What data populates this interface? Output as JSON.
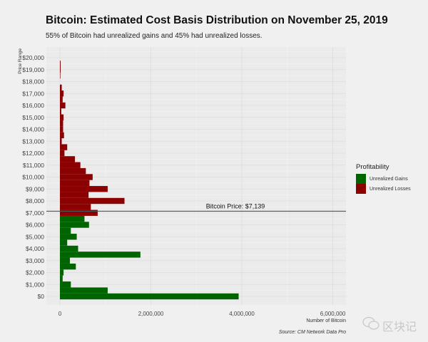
{
  "title": "Bitcoin: Estimated Cost Basis Distribution on November 25, 2019",
  "subtitle": "55% of Bitcoin had unrealized gains and 45% had unrealized losses.",
  "legend": {
    "title": "Profitability",
    "items": [
      {
        "label": "Unrealized Gains",
        "color": "#006400"
      },
      {
        "label": "Unrealized Losses",
        "color": "#8b0000"
      }
    ]
  },
  "source": "Source: CM Network Data Pro",
  "watermark": "区块记",
  "chart_data": {
    "type": "bar",
    "orientation": "horizontal",
    "title": "Bitcoin: Estimated Cost Basis Distribution on November 25, 2019",
    "xlabel": "Number of Bitcoin",
    "ylabel": "Price Range",
    "xlim": [
      0,
      6000000
    ],
    "ylim": [
      0,
      20000
    ],
    "grid": true,
    "legend_position": "right",
    "x_ticks": [
      0,
      2000000,
      4000000,
      6000000
    ],
    "x_tick_labels": [
      "0",
      "2,000,000",
      "4,000,000",
      "6,000,000"
    ],
    "y_ticks": [
      0,
      1000,
      2000,
      3000,
      4000,
      5000,
      6000,
      7000,
      8000,
      9000,
      10000,
      11000,
      12000,
      13000,
      14000,
      15000,
      16000,
      17000,
      18000,
      19000,
      20000
    ],
    "y_tick_labels": [
      "$0",
      "$1,000",
      "$2,000",
      "$3,000",
      "$4,000",
      "$5,000",
      "$6,000",
      "$7,000",
      "$8,000",
      "$9,000",
      "$10,000",
      "$11,000",
      "$12,000",
      "$13,000",
      "$14,000",
      "$15,000",
      "$16,000",
      "$17,000",
      "$18,000",
      "$19,000",
      "$20,000"
    ],
    "annotation": {
      "label": "Bitcoin Price: $7,139",
      "value": 7139
    },
    "categories": [
      0,
      500,
      1000,
      1500,
      2000,
      2500,
      3000,
      3500,
      4000,
      4500,
      5000,
      5500,
      6000,
      6500,
      7000,
      7500,
      8000,
      8500,
      9000,
      9500,
      10000,
      10500,
      11000,
      11500,
      12000,
      12500,
      13000,
      13500,
      14000,
      14500,
      15000,
      15500,
      16000,
      16500,
      17000,
      17500,
      18000,
      18500,
      19000,
      19500
    ],
    "values": [
      3930000,
      1050000,
      240000,
      60000,
      80000,
      350000,
      220000,
      1770000,
      400000,
      160000,
      370000,
      240000,
      640000,
      540000,
      830000,
      680000,
      1420000,
      630000,
      1050000,
      650000,
      720000,
      570000,
      450000,
      330000,
      100000,
      160000,
      40000,
      90000,
      70000,
      70000,
      80000,
      30000,
      120000,
      60000,
      80000,
      40000,
      0,
      10000,
      15000,
      15000
    ],
    "profitability": [
      "Unrealized Gains",
      "Unrealized Gains",
      "Unrealized Gains",
      "Unrealized Gains",
      "Unrealized Gains",
      "Unrealized Gains",
      "Unrealized Gains",
      "Unrealized Gains",
      "Unrealized Gains",
      "Unrealized Gains",
      "Unrealized Gains",
      "Unrealized Gains",
      "Unrealized Gains",
      "Unrealized Gains",
      "Unrealized Losses",
      "Unrealized Losses",
      "Unrealized Losses",
      "Unrealized Losses",
      "Unrealized Losses",
      "Unrealized Losses",
      "Unrealized Losses",
      "Unrealized Losses",
      "Unrealized Losses",
      "Unrealized Losses",
      "Unrealized Losses",
      "Unrealized Losses",
      "Unrealized Losses",
      "Unrealized Losses",
      "Unrealized Losses",
      "Unrealized Losses",
      "Unrealized Losses",
      "Unrealized Losses",
      "Unrealized Losses",
      "Unrealized Losses",
      "Unrealized Losses",
      "Unrealized Losses",
      "Unrealized Losses",
      "Unrealized Losses",
      "Unrealized Losses",
      "Unrealized Losses"
    ]
  }
}
